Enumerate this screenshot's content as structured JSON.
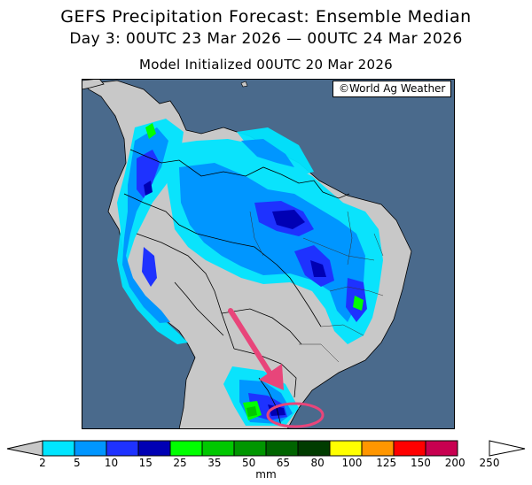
{
  "header": {
    "title": "GEFS Precipitation Forecast: Ensemble Median",
    "period": "Day 3: 00UTC 23 Mar 2026 — 00UTC 24 Mar 2026",
    "init": "Model Initialized 00UTC 20 Mar 2026"
  },
  "map": {
    "credit": "©World Ag Weather",
    "ocean_color": "#4a6a8c",
    "land_color": "#c8c8c8",
    "annotation": {
      "arrow_color": "#e8457a",
      "circle_color": "#e8457a"
    }
  },
  "legend": {
    "unit": "mm",
    "ticks": [
      "2",
      "5",
      "10",
      "15",
      "25",
      "35",
      "50",
      "65",
      "80",
      "100",
      "125",
      "150",
      "200",
      "250"
    ],
    "colors": [
      "#00e5ff",
      "#0096ff",
      "#1e32ff",
      "#0000b4",
      "#00ff00",
      "#00c800",
      "#009600",
      "#006400",
      "#003c00",
      "#ffff00",
      "#ff9600",
      "#ff0000",
      "#c80050",
      "#ff00ff",
      "#a050c8"
    ]
  }
}
